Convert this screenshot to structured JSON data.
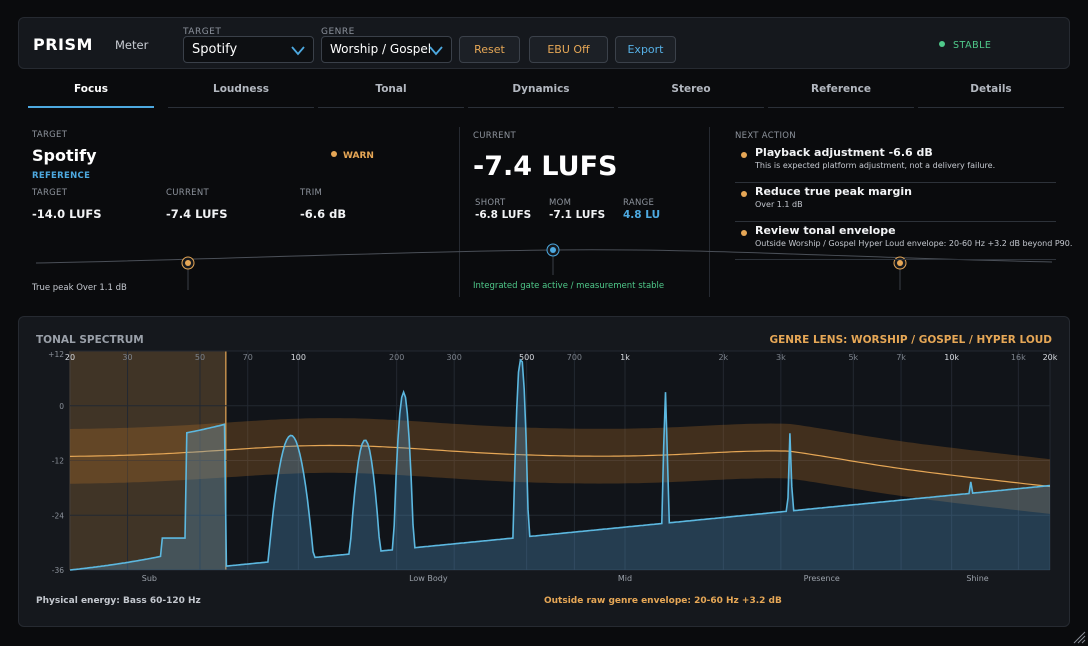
{
  "header": {
    "brand": "PRISM",
    "mode": "Meter",
    "target_label": "TARGET",
    "target_value": "Spotify",
    "genre_label": "GENRE",
    "genre_value": "Worship / Gospel",
    "reset_label": "Reset",
    "ebu_label": "EBU Off",
    "export_label": "Export",
    "status": "STABLE"
  },
  "tabs": [
    {
      "label": "Focus",
      "active": true
    },
    {
      "label": "Loudness"
    },
    {
      "label": "Tonal"
    },
    {
      "label": "Dynamics"
    },
    {
      "label": "Stereo"
    },
    {
      "label": "Reference"
    },
    {
      "label": "Details"
    }
  ],
  "focus": {
    "target_heading": "TARGET",
    "target_name": "Spotify",
    "reference_tag": "REFERENCE",
    "warn": "WARN",
    "metrics": [
      {
        "label": "TARGET",
        "value": "-14.0 LUFS"
      },
      {
        "label": "CURRENT",
        "value": "-7.4 LUFS"
      },
      {
        "label": "TRIM",
        "value": "-6.6 dB"
      }
    ],
    "true_peak_note": "True peak Over 1.1 dB",
    "current_heading": "CURRENT",
    "current_lufs": "-7.4 LUFS",
    "sub_metrics": [
      {
        "label": "SHORT",
        "value": "-6.8 LUFS"
      },
      {
        "label": "MOM",
        "value": "-7.1 LUFS"
      },
      {
        "label": "RANGE",
        "value": "4.8 LU"
      }
    ],
    "gate_note": "Integrated gate active / measurement stable",
    "next_heading": "NEXT ACTION",
    "actions": [
      {
        "title": "Playback adjustment -6.6 dB",
        "desc": "This is expected platform adjustment, not a delivery failure."
      },
      {
        "title": "Reduce true peak margin",
        "desc": "Over 1.1 dB"
      },
      {
        "title": "Review tonal envelope",
        "desc": "Outside Worship / Gospel Hyper Loud envelope: 20-60 Hz +3.2 dB beyond P90."
      }
    ]
  },
  "spectrum": {
    "title": "TONAL SPECTRUM",
    "lens": "GENRE LENS: WORSHIP / GOSPEL / HYPER LOUD",
    "freq_ticks": [
      "20",
      "30",
      "50",
      "70",
      "100",
      "200",
      "300",
      "500",
      "700",
      "1k",
      "2k",
      "3k",
      "5k",
      "7k",
      "10k",
      "16k",
      "20k"
    ],
    "db_ticks": [
      "+12",
      "0",
      "-12",
      "-24",
      "-36"
    ],
    "bands": [
      "Sub",
      "Low Body",
      "Mid",
      "Presence",
      "Shine"
    ],
    "footer_left": "Physical energy: Bass 60-120 Hz",
    "footer_right": "Outside raw genre envelope: 20-60 Hz +3.2 dB",
    "highlight_range_hz": [
      20,
      60
    ],
    "colors": {
      "accent": "#4da9e0",
      "warn": "#e6a756",
      "ok": "#4fc98a",
      "spectrum": "#5cb8e0",
      "envelope": "#e6a756"
    }
  }
}
